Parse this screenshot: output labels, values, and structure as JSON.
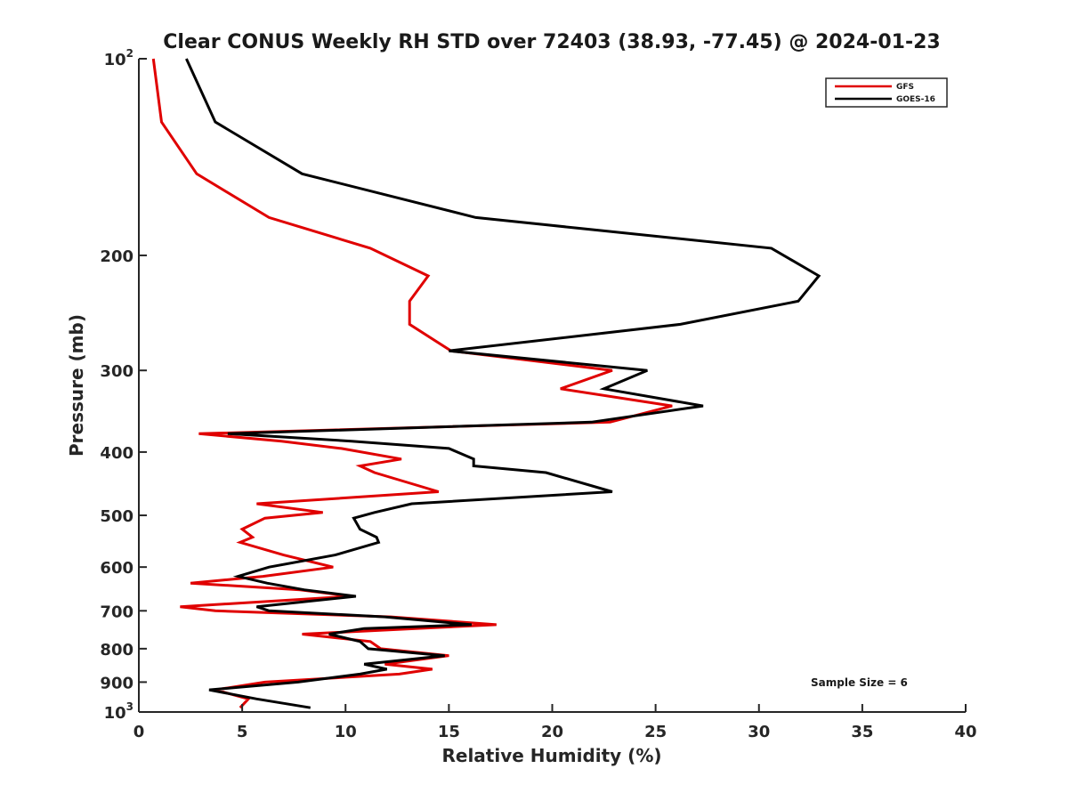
{
  "chart_data": {
    "type": "line",
    "title": "Clear CONUS Weekly RH STD over 72403 (38.93, -77.45) @ 2024-01-23",
    "xlabel": "Relative Humidity (%)",
    "ylabel": "Pressure (mb)",
    "xlim": [
      0,
      40
    ],
    "ylim": [
      100,
      1000
    ],
    "y_scale": "log",
    "y_reversed": true,
    "grid": false,
    "legend_placement": "top-right",
    "x_ticks": [
      0,
      5,
      10,
      15,
      20,
      25,
      30,
      35,
      40
    ],
    "y_ticks": [
      {
        "value": 100,
        "label": "10",
        "sup": "2"
      },
      {
        "value": 200,
        "label": "200",
        "sup": ""
      },
      {
        "value": 300,
        "label": "300",
        "sup": ""
      },
      {
        "value": 400,
        "label": "400",
        "sup": ""
      },
      {
        "value": 500,
        "label": "500",
        "sup": ""
      },
      {
        "value": 600,
        "label": "600",
        "sup": ""
      },
      {
        "value": 700,
        "label": "700",
        "sup": ""
      },
      {
        "value": 800,
        "label": "800",
        "sup": ""
      },
      {
        "value": 900,
        "label": "900",
        "sup": ""
      },
      {
        "value": 1000,
        "label": "10",
        "sup": "3"
      }
    ],
    "annotation": "Sample Size = 6",
    "series": [
      {
        "name": "GFS",
        "color": "#e00000",
        "points": [
          [
            0.7,
            100
          ],
          [
            1.1,
            125
          ],
          [
            2.8,
            150
          ],
          [
            6.3,
            175
          ],
          [
            11.2,
            195
          ],
          [
            14.0,
            215
          ],
          [
            13.1,
            235
          ],
          [
            13.1,
            255
          ],
          [
            15.1,
            280
          ],
          [
            22.9,
            300
          ],
          [
            20.4,
            320
          ],
          [
            25.8,
            340
          ],
          [
            22.8,
            360
          ],
          [
            2.9,
            375
          ],
          [
            6.9,
            385
          ],
          [
            9.8,
            395
          ],
          [
            12.7,
            410
          ],
          [
            10.7,
            420
          ],
          [
            11.4,
            430
          ],
          [
            14.5,
            460
          ],
          [
            5.7,
            480
          ],
          [
            8.9,
            495
          ],
          [
            6.1,
            505
          ],
          [
            5.0,
            525
          ],
          [
            5.5,
            540
          ],
          [
            4.9,
            550
          ],
          [
            7.0,
            575
          ],
          [
            9.4,
            600
          ],
          [
            6.0,
            620
          ],
          [
            2.5,
            635
          ],
          [
            7.8,
            650
          ],
          [
            10.3,
            665
          ],
          [
            2.0,
            690
          ],
          [
            3.7,
            700
          ],
          [
            12.2,
            715
          ],
          [
            17.3,
            735
          ],
          [
            13.4,
            745
          ],
          [
            7.9,
            760
          ],
          [
            11.2,
            780
          ],
          [
            11.7,
            800
          ],
          [
            15.0,
            820
          ],
          [
            11.9,
            845
          ],
          [
            14.2,
            860
          ],
          [
            12.6,
            875
          ],
          [
            6.1,
            900
          ],
          [
            3.7,
            925
          ],
          [
            5.3,
            955
          ],
          [
            4.9,
            985
          ]
        ]
      },
      {
        "name": "GOES-16",
        "color": "#000000",
        "points": [
          [
            2.3,
            100
          ],
          [
            3.7,
            125
          ],
          [
            7.9,
            150
          ],
          [
            16.3,
            175
          ],
          [
            30.6,
            195
          ],
          [
            32.9,
            215
          ],
          [
            31.9,
            235
          ],
          [
            26.2,
            255
          ],
          [
            15.0,
            280
          ],
          [
            24.6,
            300
          ],
          [
            22.5,
            320
          ],
          [
            27.3,
            340
          ],
          [
            21.9,
            360
          ],
          [
            4.3,
            375
          ],
          [
            10.3,
            385
          ],
          [
            15.0,
            395
          ],
          [
            16.2,
            410
          ],
          [
            16.2,
            420
          ],
          [
            19.7,
            430
          ],
          [
            22.9,
            460
          ],
          [
            13.2,
            480
          ],
          [
            11.4,
            495
          ],
          [
            10.4,
            505
          ],
          [
            10.7,
            525
          ],
          [
            11.5,
            540
          ],
          [
            11.6,
            550
          ],
          [
            9.5,
            575
          ],
          [
            6.3,
            600
          ],
          [
            4.8,
            620
          ],
          [
            6.2,
            635
          ],
          [
            8.0,
            650
          ],
          [
            10.5,
            665
          ],
          [
            5.7,
            690
          ],
          [
            6.3,
            700
          ],
          [
            11.9,
            715
          ],
          [
            16.1,
            735
          ],
          [
            10.9,
            745
          ],
          [
            9.2,
            760
          ],
          [
            10.7,
            780
          ],
          [
            11.1,
            800
          ],
          [
            14.8,
            820
          ],
          [
            10.9,
            845
          ],
          [
            12.0,
            860
          ],
          [
            10.7,
            875
          ],
          [
            7.7,
            900
          ],
          [
            3.4,
            925
          ],
          [
            5.7,
            955
          ],
          [
            8.3,
            985
          ]
        ]
      }
    ]
  }
}
